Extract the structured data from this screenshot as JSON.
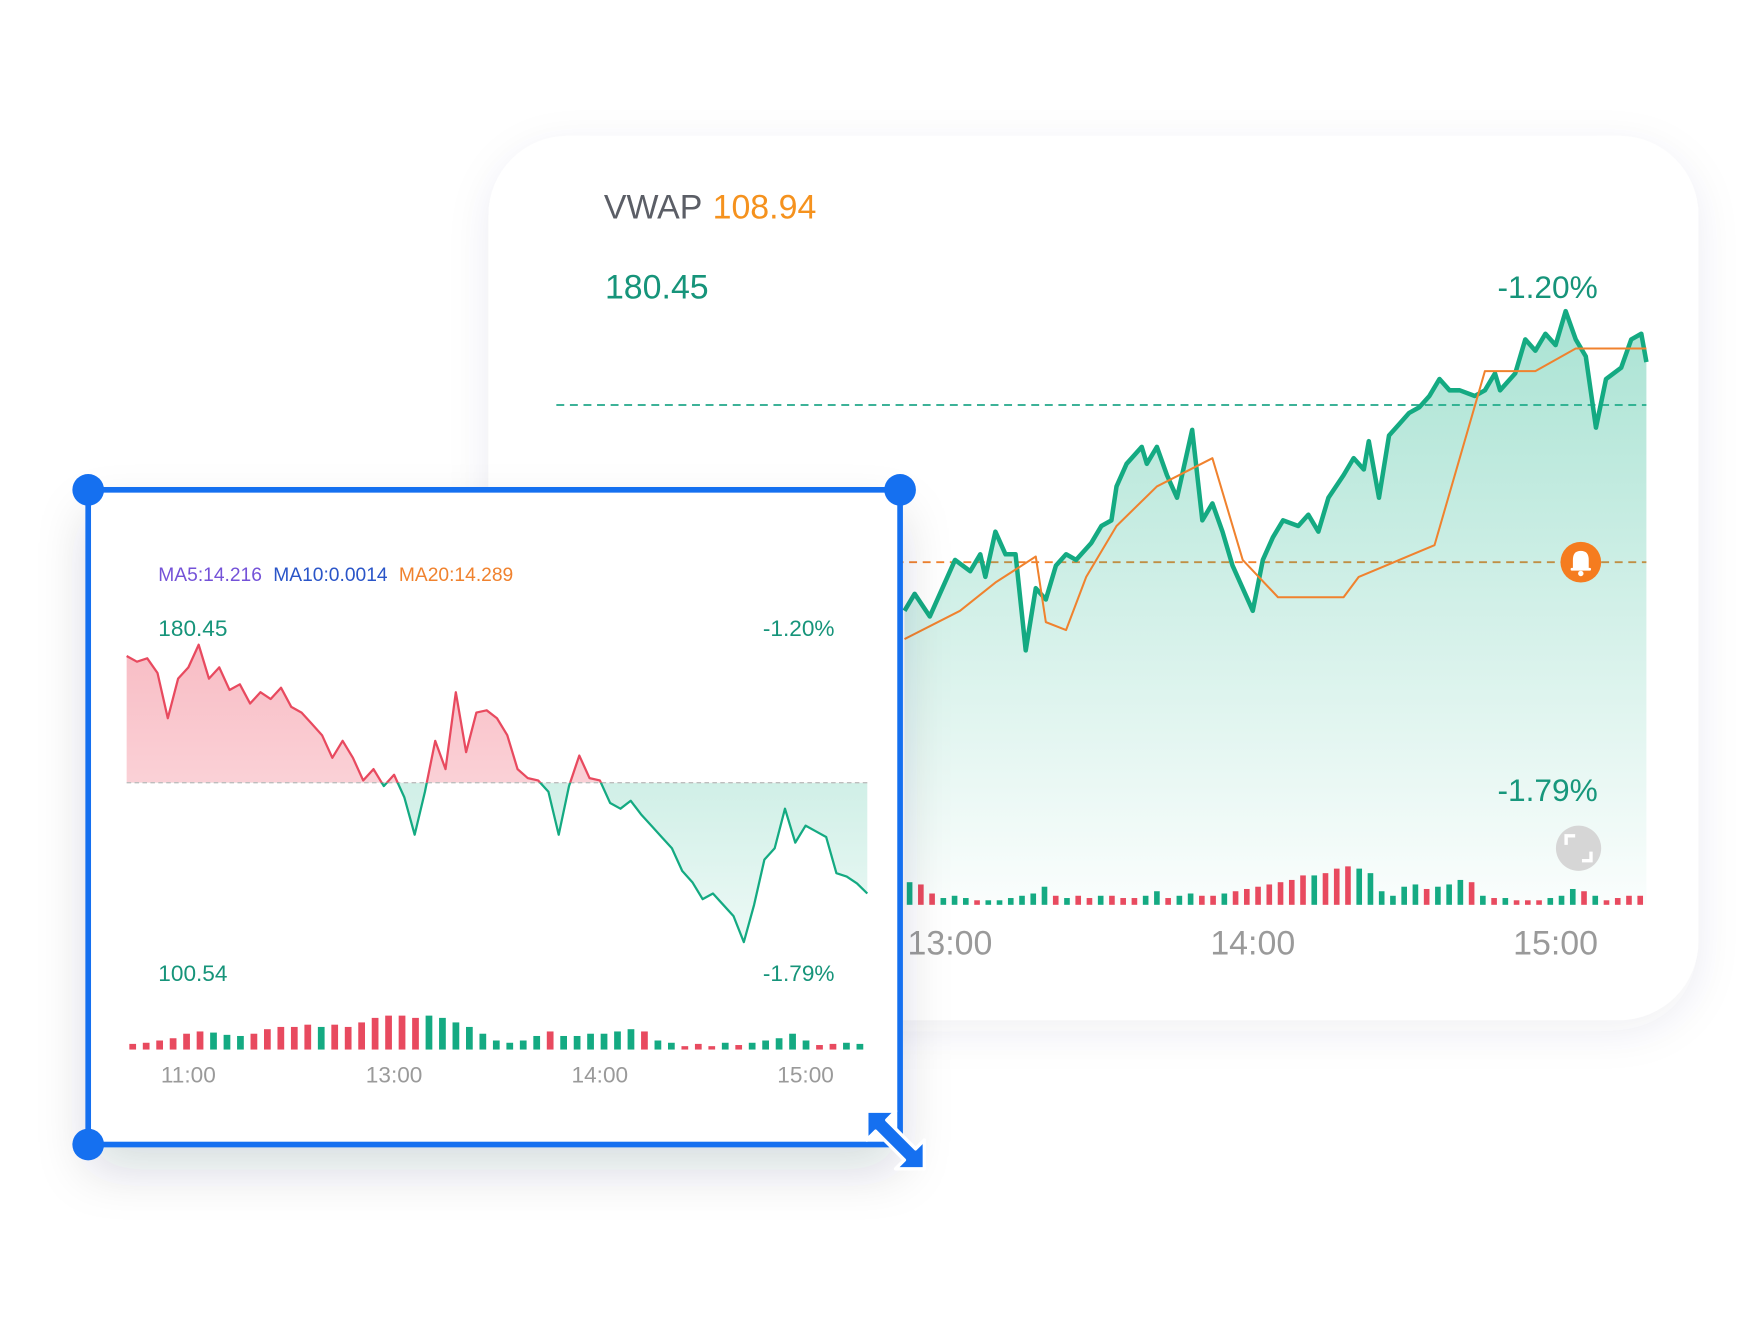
{
  "chart_data": [
    {
      "type": "line",
      "vwap": {
        "label": "VWAP",
        "value": 108.94
      },
      "xlim": [
        0,
        216
      ],
      "xticks": [
        {
          "value": 78,
          "label": "13:00"
        },
        {
          "value": 138,
          "label": "14:00"
        },
        {
          "value": 198,
          "label": "15:00"
        }
      ],
      "ylim": [
        100.54,
        180.45
      ],
      "yticks": [
        180.45
      ],
      "y2lim": [
        -1.79,
        -1.2
      ],
      "y2ticks": [
        {
          "value": -1.2,
          "label": "-1.20%"
        },
        {
          "value": -1.79,
          "label": "-1.79%"
        }
      ],
      "reference_lines": [
        {
          "value": 164.65,
          "color": "#22a88a"
        },
        {
          "value": 139.69,
          "color": "#f0822e"
        }
      ],
      "area": true,
      "series": [
        {
          "color": "#14aa82",
          "x": [
            69,
            71,
            74,
            76,
            79,
            82,
            84,
            85,
            87,
            89,
            91,
            93,
            95,
            97,
            99,
            101,
            103,
            106,
            108,
            110,
            111,
            113,
            116,
            117,
            119,
            121,
            123,
            126,
            128,
            130,
            132,
            134,
            138,
            140,
            142,
            144,
            147,
            149,
            151,
            153,
            156,
            158,
            160,
            161,
            163,
            165,
            167,
            169,
            171,
            173,
            175,
            177,
            179,
            182,
            184,
            186,
            187,
            190,
            192,
            194,
            196,
            198,
            200,
            202,
            204,
            206,
            208,
            211,
            213,
            215,
            216
          ],
          "values": [
            131.97,
            134.66,
            131.07,
            134.66,
            140.05,
            138.25,
            140.94,
            137.35,
            144.54,
            140.94,
            140.94,
            125.68,
            135.56,
            133.76,
            139.15,
            140.94,
            140.05,
            142.74,
            145.43,
            146.33,
            151.72,
            155.31,
            158.0,
            155.31,
            158.0,
            153.51,
            149.92,
            160.7,
            146.33,
            149.03,
            144.54,
            139.15,
            131.97,
            140.05,
            143.64,
            146.33,
            145.43,
            147.23,
            144.54,
            149.92,
            153.51,
            156.21,
            154.41,
            158.9,
            149.92,
            159.8,
            161.59,
            163.39,
            164.29,
            166.08,
            168.78,
            166.98,
            166.98,
            166.08,
            166.98,
            169.68,
            166.98,
            169.68,
            175.06,
            173.27,
            175.96,
            174.17,
            179.55,
            175.06,
            172.37,
            161.06,
            168.78,
            170.57,
            175.06,
            175.96,
            171.47
          ]
        },
        {
          "color": "#f0822e",
          "x": [
            69,
            80,
            87,
            95,
            97,
            101,
            105,
            111,
            119,
            130,
            136,
            143,
            156,
            159,
            174,
            184,
            194,
            202,
            216
          ],
          "values": [
            127.48,
            131.97,
            136.46,
            140.58,
            130.17,
            128.91,
            137.35,
            145.43,
            151.72,
            156.21,
            140.05,
            134.12,
            134.12,
            137.35,
            142.38,
            170.04,
            170.04,
            173.63,
            173.63
          ]
        }
      ],
      "volume": {
        "ylim": [
          0,
          40
        ],
        "values": [
          20,
          18,
          10,
          6,
          8,
          6,
          4,
          4,
          4,
          6,
          8,
          10,
          16,
          8,
          6,
          8,
          6,
          8,
          8,
          6,
          6,
          8,
          12,
          6,
          8,
          10,
          8,
          8,
          10,
          12,
          14,
          16,
          18,
          20,
          22,
          26,
          26,
          28,
          32,
          34,
          32,
          28,
          12,
          8,
          16,
          18,
          14,
          16,
          18,
          22,
          20,
          8,
          6,
          6,
          4,
          4,
          4,
          6,
          8,
          14,
          12,
          8,
          4,
          6,
          8,
          8
        ],
        "colors": [
          "#14aa82",
          "#e84a5f",
          "#e84a5f",
          "#14aa82",
          "#14aa82",
          "#14aa82",
          "#e84a5f",
          "#14aa82",
          "#14aa82",
          "#14aa82",
          "#14aa82",
          "#14aa82",
          "#14aa82",
          "#e84a5f",
          "#14aa82",
          "#e84a5f",
          "#e84a5f",
          "#14aa82",
          "#e84a5f",
          "#e84a5f",
          "#e84a5f",
          "#14aa82",
          "#14aa82",
          "#e84a5f",
          "#14aa82",
          "#14aa82",
          "#e84a5f",
          "#e84a5f",
          "#14aa82",
          "#e84a5f",
          "#e84a5f",
          "#e84a5f",
          "#e84a5f",
          "#e84a5f",
          "#e84a5f",
          "#e84a5f",
          "#14aa82",
          "#e84a5f",
          "#e84a5f",
          "#e84a5f",
          "#14aa82",
          "#14aa82",
          "#14aa82",
          "#14aa82",
          "#14aa82",
          "#14aa82",
          "#e84a5f",
          "#14aa82",
          "#14aa82",
          "#14aa82",
          "#e84a5f",
          "#14aa82",
          "#e84a5f",
          "#14aa82",
          "#e84a5f",
          "#e84a5f",
          "#e84a5f",
          "#14aa82",
          "#14aa82",
          "#14aa82",
          "#e84a5f",
          "#14aa82",
          "#e84a5f",
          "#e84a5f",
          "#e84a5f",
          "#e84a5f"
        ]
      }
    },
    {
      "type": "line",
      "indicators": [
        {
          "label": "MA5:14.216",
          "color": "#7452d8"
        },
        {
          "label": "MA10:0.0014",
          "color": "#2a55c8"
        },
        {
          "label": "MA20:14.289",
          "color": "#f0822e"
        }
      ],
      "xlim": [
        0,
        216
      ],
      "xticks": [
        {
          "value": 18,
          "label": "11:00"
        },
        {
          "value": 78,
          "label": "13:00"
        },
        {
          "value": 138,
          "label": "14:00"
        },
        {
          "value": 198,
          "label": "15:00"
        }
      ],
      "ylim": [
        100.54,
        180.45
      ],
      "yticks": [
        180.45,
        100.54
      ],
      "y2lim": [
        -1.79,
        -1.2
      ],
      "y2ticks": [
        {
          "value": -1.2,
          "label": "-1.20%"
        },
        {
          "value": -1.79,
          "label": "-1.79%"
        }
      ],
      "baseline": 145.15,
      "up_color": "#e84a5f",
      "down_color": "#14aa82",
      "series": [
        {
          "x": [
            0,
            3,
            6,
            9,
            12,
            15,
            18,
            21,
            24,
            27,
            30,
            33,
            36,
            39,
            42,
            45,
            48,
            51,
            54,
            57,
            60,
            63,
            66,
            69,
            72,
            75,
            78,
            81,
            84,
            87,
            90,
            93,
            96,
            99,
            102,
            105,
            108,
            111,
            114,
            117,
            120,
            123,
            126,
            129,
            132,
            135,
            138,
            141,
            144,
            147,
            150,
            153,
            156,
            159,
            162,
            165,
            168,
            171,
            174,
            177,
            180,
            183,
            186,
            189,
            192,
            195,
            198,
            201,
            204,
            207,
            210,
            213,
            216
          ],
          "values": [
            176.78,
            175.37,
            176.21,
            172.54,
            161.25,
            171.13,
            173.96,
            179.6,
            171.13,
            173.96,
            168.31,
            169.72,
            164.92,
            167.74,
            166.05,
            168.87,
            164.07,
            162.66,
            159.84,
            157.01,
            151.36,
            155.6,
            151.36,
            145.72,
            148.54,
            144.3,
            147.13,
            141.48,
            132.16,
            142.89,
            155.6,
            148.54,
            167.74,
            152.78,
            162.66,
            163.22,
            161.25,
            157.01,
            148.54,
            146.28,
            145.72,
            142.89,
            132.16,
            144.3,
            151.93,
            146.28,
            145.72,
            140.07,
            138.66,
            140.63,
            137.24,
            134.42,
            131.6,
            128.77,
            123.12,
            120.3,
            116.06,
            117.48,
            114.65,
            111.83,
            105.33,
            114.65,
            125.95,
            128.77,
            138.66,
            130.18,
            134.42,
            133.01,
            131.6,
            122.56,
            121.71,
            120.0,
            117.48
          ]
        }
      ],
      "volume": {
        "ylim": [
          0,
          40
        ],
        "values": [
          5,
          6,
          8,
          10,
          14,
          16,
          15,
          13,
          12,
          14,
          18,
          20,
          20,
          22,
          20,
          22,
          20,
          24,
          28,
          30,
          30,
          28,
          30,
          28,
          24,
          20,
          14,
          8,
          6,
          8,
          12,
          16,
          12,
          12,
          14,
          14,
          16,
          18,
          16,
          8,
          6,
          3,
          5,
          3,
          6,
          4,
          6,
          8,
          10,
          14,
          8,
          4,
          5,
          6,
          5
        ],
        "colors": [
          "#e84a5f",
          "#e84a5f",
          "#e84a5f",
          "#e84a5f",
          "#e84a5f",
          "#e84a5f",
          "#14aa82",
          "#14aa82",
          "#14aa82",
          "#e84a5f",
          "#e84a5f",
          "#e84a5f",
          "#e84a5f",
          "#e84a5f",
          "#14aa82",
          "#e84a5f",
          "#e84a5f",
          "#e84a5f",
          "#e84a5f",
          "#e84a5f",
          "#e84a5f",
          "#e84a5f",
          "#14aa82",
          "#14aa82",
          "#14aa82",
          "#14aa82",
          "#14aa82",
          "#14aa82",
          "#14aa82",
          "#14aa82",
          "#14aa82",
          "#e84a5f",
          "#14aa82",
          "#14aa82",
          "#14aa82",
          "#14aa82",
          "#14aa82",
          "#14aa82",
          "#e84a5f",
          "#14aa82",
          "#14aa82",
          "#e84a5f",
          "#e84a5f",
          "#e84a5f",
          "#14aa82",
          "#e84a5f",
          "#14aa82",
          "#14aa82",
          "#14aa82",
          "#14aa82",
          "#14aa82",
          "#e84a5f",
          "#e84a5f",
          "#14aa82",
          "#14aa82"
        ]
      }
    }
  ]
}
